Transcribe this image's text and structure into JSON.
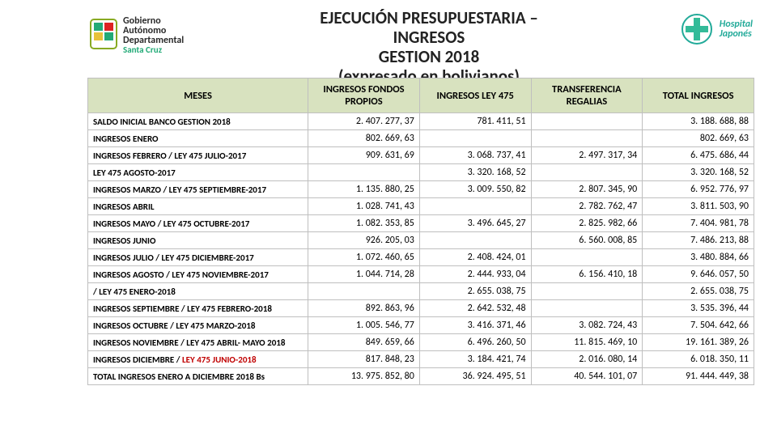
{
  "header": {
    "title_l1": "EJECUCIÓN PRESUPUESTARIA –",
    "title_l2": "INGRESOS",
    "title_l3": "GESTION 2018",
    "title_l4": "(expresado en bolivianos)",
    "gov_l1": "Gobierno",
    "gov_l2": "Autónomo",
    "gov_l3": "Departamental",
    "gov_sc": "Santa Cruz",
    "hosp_l1": "Hospital",
    "hosp_l2": "Japonés"
  },
  "columns": {
    "c0": "MESES",
    "c1": "INGRESOS FONDOS PROPIOS",
    "c2": "INGRESOS LEY 475",
    "c3": "TRANSFERENCIA REGALIAS",
    "c4": "TOTAL INGRESOS"
  },
  "rows": [
    {
      "m": "SALDO INICIAL BANCO GESTION 2018",
      "a": "2. 407. 277, 37",
      "b": "781. 411, 51",
      "c": "",
      "d": "3. 188. 688, 88"
    },
    {
      "m": "INGRESOS ENERO",
      "a": "802. 669, 63",
      "b": "",
      "c": "",
      "d": "802. 669, 63"
    },
    {
      "m": "INGRESOS FEBRERO /   LEY 475 JULIO-2017",
      "a": "909. 631, 69",
      "b": "3. 068. 737, 41",
      "c": "2. 497. 317, 34",
      "d": "6. 475. 686, 44"
    },
    {
      "m": "                                LEY 475 AGOSTO-2017",
      "a": "",
      "b": "3. 320. 168, 52",
      "c": "",
      "d": "3. 320. 168, 52"
    },
    {
      "m": "INGRESOS MARZO  /     LEY 475 SEPTIEMBRE-2017",
      "a": "1. 135. 880, 25",
      "b": "3. 009. 550, 82",
      "c": "2. 807. 345, 90",
      "d": "6. 952. 776, 97"
    },
    {
      "m": "INGRESOS ABRIL",
      "a": "1. 028. 741, 43",
      "b": "",
      "c": "2. 782. 762, 47",
      "d": "3. 811. 503, 90"
    },
    {
      "m": "INGRESOS MAYO /         LEY 475 OCTUBRE-2017",
      "a": "1. 082. 353, 85",
      "b": "3. 496. 645, 27",
      "c": "2. 825. 982, 66",
      "d": "7. 404. 981, 78"
    },
    {
      "m": "INGRESOS JUNIO",
      "a": "926. 205, 03",
      "b": "",
      "c": "6. 560. 008, 85",
      "d": "7. 486. 213, 88"
    },
    {
      "m": "INGRESOS JULIO  /      LEY 475 DICIEMBRE-2017",
      "a": "1. 072. 460, 65",
      "b": "2. 408. 424, 01",
      "c": "",
      "d": "3. 480. 884, 66"
    },
    {
      "m": "INGRESOS AGOSTO  /     LEY 475 NOVIEMBRE-2017",
      "a": "1. 044. 714, 28",
      "b": "2. 444. 933, 04",
      "c": "6. 156. 410, 18",
      "d": "9. 646. 057, 50"
    },
    {
      "m": "                       /     LEY 475 ENERO-2018",
      "a": "",
      "b": "2. 655. 038, 75",
      "c": "",
      "d": "2. 655. 038, 75"
    },
    {
      "m": "INGRESOS SEPTIEMBRE / LEY 475 FEBRERO-2018",
      "a": "892. 863, 96",
      "b": "2. 642. 532, 48",
      "c": "",
      "d": "3. 535. 396, 44"
    },
    {
      "m": "INGRESOS OCTUBRE /    LEY 475 MARZO-2018",
      "a": "1. 005. 546, 77",
      "b": "3. 416. 371, 46",
      "c": "3. 082. 724, 43",
      "d": "7. 504. 642, 66"
    },
    {
      "m": "INGRESOS NOVIEMBRE /  LEY 475 ABRIL- MAYO 2018",
      "a": "849. 659, 66",
      "b": "6. 496. 260, 50",
      "c": "11. 815. 469, 10",
      "d": "19. 161. 389, 26"
    },
    {
      "m": "INGRESOS DICIEMBRE /   ",
      "mred": "LEY 475 JUNIO-2018",
      "a": "817. 848, 23",
      "b": "3. 184. 421, 74",
      "c": "2. 016. 080, 14",
      "d": "6. 018. 350, 11"
    },
    {
      "m": "TOTAL INGRESOS ENERO A DICIEMBRE 2018 Bs",
      "a": "13. 975. 852, 80",
      "b": "36. 924. 495, 51",
      "c": "40. 544. 101, 07",
      "d": "91. 444. 449, 38"
    }
  ],
  "styles": {
    "header_bg": "#d8e2bf",
    "border_color": "#bfbfbf",
    "law_red": "#c00000"
  }
}
